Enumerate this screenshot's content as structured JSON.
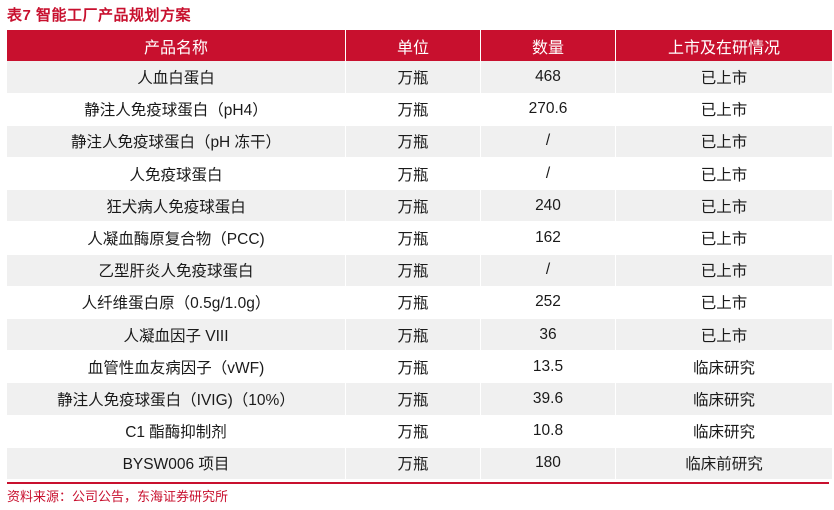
{
  "title": "表7  智能工厂产品规划方案",
  "headers": [
    "产品名称",
    "单位",
    "数量",
    "上市及在研情况"
  ],
  "rows": [
    {
      "name": "人血白蛋白",
      "unit": "万瓶",
      "qty": "468",
      "status": "已上市"
    },
    {
      "name": "静注人免疫球蛋白（pH4）",
      "unit": "万瓶",
      "qty": "270.6",
      "status": "已上市"
    },
    {
      "name": "静注人免疫球蛋白（pH  冻干）",
      "unit": "万瓶",
      "qty": "/",
      "status": "已上市"
    },
    {
      "name": "人免疫球蛋白",
      "unit": "万瓶",
      "qty": "/",
      "status": "已上市"
    },
    {
      "name": "狂犬病人免疫球蛋白",
      "unit": "万瓶",
      "qty": "240",
      "status": "已上市"
    },
    {
      "name": "人凝血酶原复合物（PCC)",
      "unit": "万瓶",
      "qty": "162",
      "status": "已上市"
    },
    {
      "name": "乙型肝炎人免疫球蛋白",
      "unit": "万瓶",
      "qty": "/",
      "status": "已上市"
    },
    {
      "name": "人纤维蛋白原（0.5g/1.0g）",
      "unit": "万瓶",
      "qty": "252",
      "status": "已上市"
    },
    {
      "name": "人凝血因子  VIII",
      "unit": "万瓶",
      "qty": "36",
      "status": "已上市"
    },
    {
      "name": "血管性血友病因子（vWF)",
      "unit": "万瓶",
      "qty": "13.5",
      "status": "临床研究"
    },
    {
      "name": "静注人免疫球蛋白（IVIG)（10%）",
      "unit": "万瓶",
      "qty": "39.6",
      "status": "临床研究"
    },
    {
      "name": "C1 酯酶抑制剂",
      "unit": "万瓶",
      "qty": "10.8",
      "status": "临床研究"
    },
    {
      "name": "BYSW006  项目",
      "unit": "万瓶",
      "qty": "180",
      "status": "临床前研究"
    }
  ],
  "source": "资料来源：公司公告，东海证券研究所",
  "colors": {
    "accent": "#c8102e",
    "stripe": "#f0f0f0"
  }
}
